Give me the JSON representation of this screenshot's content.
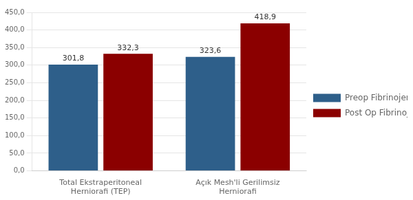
{
  "chart_data": {
    "type": "bar",
    "categories": [
      "Total Ekstraperitoneal\nHerniorafi (TEP)",
      "Açık Mesh'li Gerilimsiz\nHerniorafi"
    ],
    "series": [
      {
        "name": "Preop Fibrinojen",
        "color": "#2E5F8A",
        "values": [
          301.8,
          323.6
        ],
        "value_labels": [
          "301,8",
          "323,6"
        ]
      },
      {
        "name": "Post Op Fibrinojen",
        "color": "#8B0000",
        "values": [
          332.3,
          418.9
        ],
        "value_labels": [
          "332,3",
          "418,9"
        ]
      }
    ],
    "ylim": [
      0,
      450
    ],
    "yticks": [
      {
        "value": 0,
        "label": "0,0"
      },
      {
        "value": 50,
        "label": "50,0"
      },
      {
        "value": 100,
        "label": "100,0"
      },
      {
        "value": 150,
        "label": "150,0"
      },
      {
        "value": 200,
        "label": "200,0"
      },
      {
        "value": 250,
        "label": "250,0"
      },
      {
        "value": 300,
        "label": "300,0"
      },
      {
        "value": 350,
        "label": "350,0"
      },
      {
        "value": 400,
        "label": "400,0"
      },
      {
        "value": 450,
        "label": "450,0"
      }
    ],
    "grid": true,
    "legend": "right",
    "data_labels": true
  }
}
